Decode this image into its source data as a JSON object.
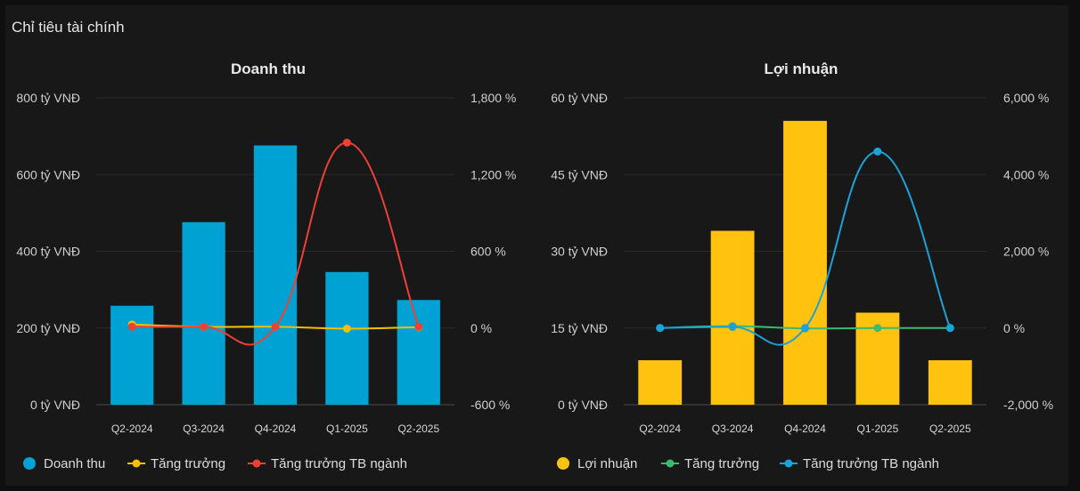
{
  "section_title": "Chỉ tiêu tài chính",
  "chart_data": [
    {
      "type": "bar",
      "title": "Doanh thu",
      "categories": [
        "Q2-2024",
        "Q3-2024",
        "Q4-2024",
        "Q1-2025",
        "Q2-2025"
      ],
      "ylim": [
        0,
        800
      ],
      "yticks": [
        "0 tỷ VNĐ",
        "200 tỷ VNĐ",
        "400 tỷ VNĐ",
        "600 tỷ VNĐ",
        "800 tỷ VNĐ"
      ],
      "y2lim": [
        -600,
        1800
      ],
      "y2ticks": [
        "-600 %",
        "0 %",
        "600 %",
        "1,200 %",
        "1,800 %"
      ],
      "series": [
        {
          "name": "Doanh thu",
          "kind": "bar",
          "axis": "left",
          "color": "#00a2d3",
          "values": [
            258,
            476,
            676,
            346,
            273
          ]
        },
        {
          "name": "Tăng trưởng",
          "kind": "line",
          "axis": "right",
          "color": "#f5c000",
          "values": [
            27,
            10,
            10,
            -5,
            7
          ]
        },
        {
          "name": "Tăng trưởng TB ngành",
          "kind": "line",
          "axis": "right",
          "color": "#ee4035",
          "values": [
            10,
            10,
            10,
            1450,
            10
          ]
        }
      ],
      "legend_position": "bottom-left"
    },
    {
      "type": "bar",
      "title": "Lợi nhuận",
      "categories": [
        "Q2-2024",
        "Q3-2024",
        "Q4-2024",
        "Q1-2025",
        "Q2-2025"
      ],
      "ylim": [
        0,
        60
      ],
      "yticks": [
        "0 tỷ VNĐ",
        "15 tỷ VNĐ",
        "30 tỷ VNĐ",
        "45 tỷ VNĐ",
        "60 tỷ VNĐ"
      ],
      "y2lim": [
        -2000,
        6000
      ],
      "y2ticks": [
        "-2,000 %",
        "0 %",
        "2,000 %",
        "4,000 %",
        "6,000 %"
      ],
      "series": [
        {
          "name": "Lợi nhuận",
          "kind": "bar",
          "axis": "left",
          "color": "#ffc20e",
          "values": [
            8.7,
            34,
            55.5,
            18,
            8.7
          ]
        },
        {
          "name": "Tăng trưởng",
          "kind": "line",
          "axis": "right",
          "color": "#3cba6f",
          "values": [
            0,
            50,
            -10,
            0,
            0
          ]
        },
        {
          "name": "Tăng trưởng TB ngành",
          "kind": "line",
          "axis": "right",
          "color": "#1aa3d9",
          "values": [
            0,
            30,
            0,
            4600,
            0
          ]
        }
      ],
      "legend_position": "bottom-left"
    }
  ]
}
